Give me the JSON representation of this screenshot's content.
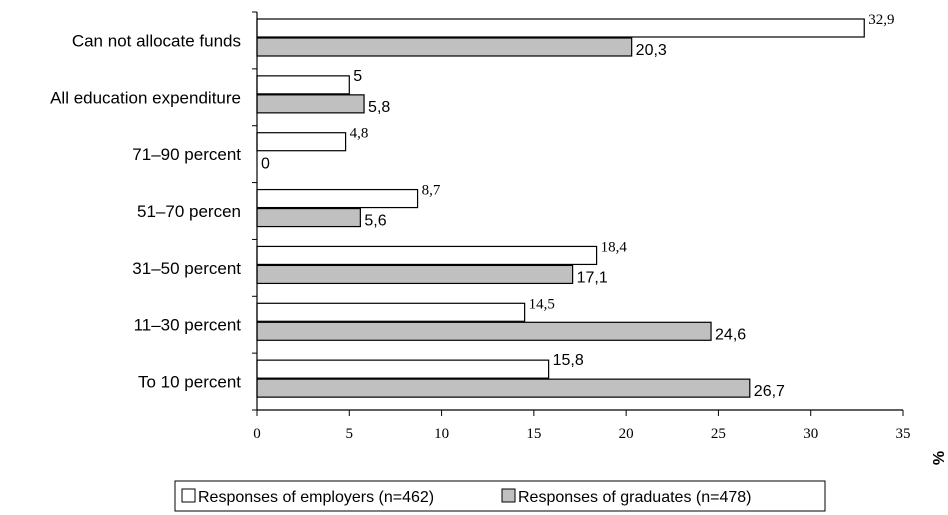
{
  "chart_data": {
    "type": "bar",
    "orientation": "horizontal",
    "categories": [
      "Can not allocate funds",
      "All education expenditure",
      "71–90 percent",
      "51–70 percen",
      "31–50 percent",
      "11–30 percent",
      "To 10 percent"
    ],
    "series": [
      {
        "name": "Responses of employers (n=462)",
        "values": [
          32.9,
          5,
          4.8,
          8.7,
          18.4,
          14.5,
          15.8
        ],
        "labels": [
          "32,9",
          "5",
          "4,8",
          "8,7",
          "18,4",
          "14,5",
          "15,8"
        ],
        "color": "#ffffff"
      },
      {
        "name": "Responses of graduates (n=478)",
        "values": [
          20.3,
          5.8,
          0,
          5.6,
          17.1,
          24.6,
          26.7
        ],
        "labels": [
          "20,3",
          "5,8",
          "0",
          "5,6",
          "17,1",
          "24,6",
          "26,7"
        ],
        "color": "#c0c0c0"
      }
    ],
    "xlim": [
      0,
      35
    ],
    "xticks": [
      0,
      5,
      10,
      15,
      20,
      25,
      30,
      35
    ],
    "xtick_labels": [
      "0",
      "5",
      "10",
      "15",
      "20",
      "25",
      "30",
      "35"
    ],
    "unit": "%",
    "legend_position": "bottom",
    "grid": false
  }
}
